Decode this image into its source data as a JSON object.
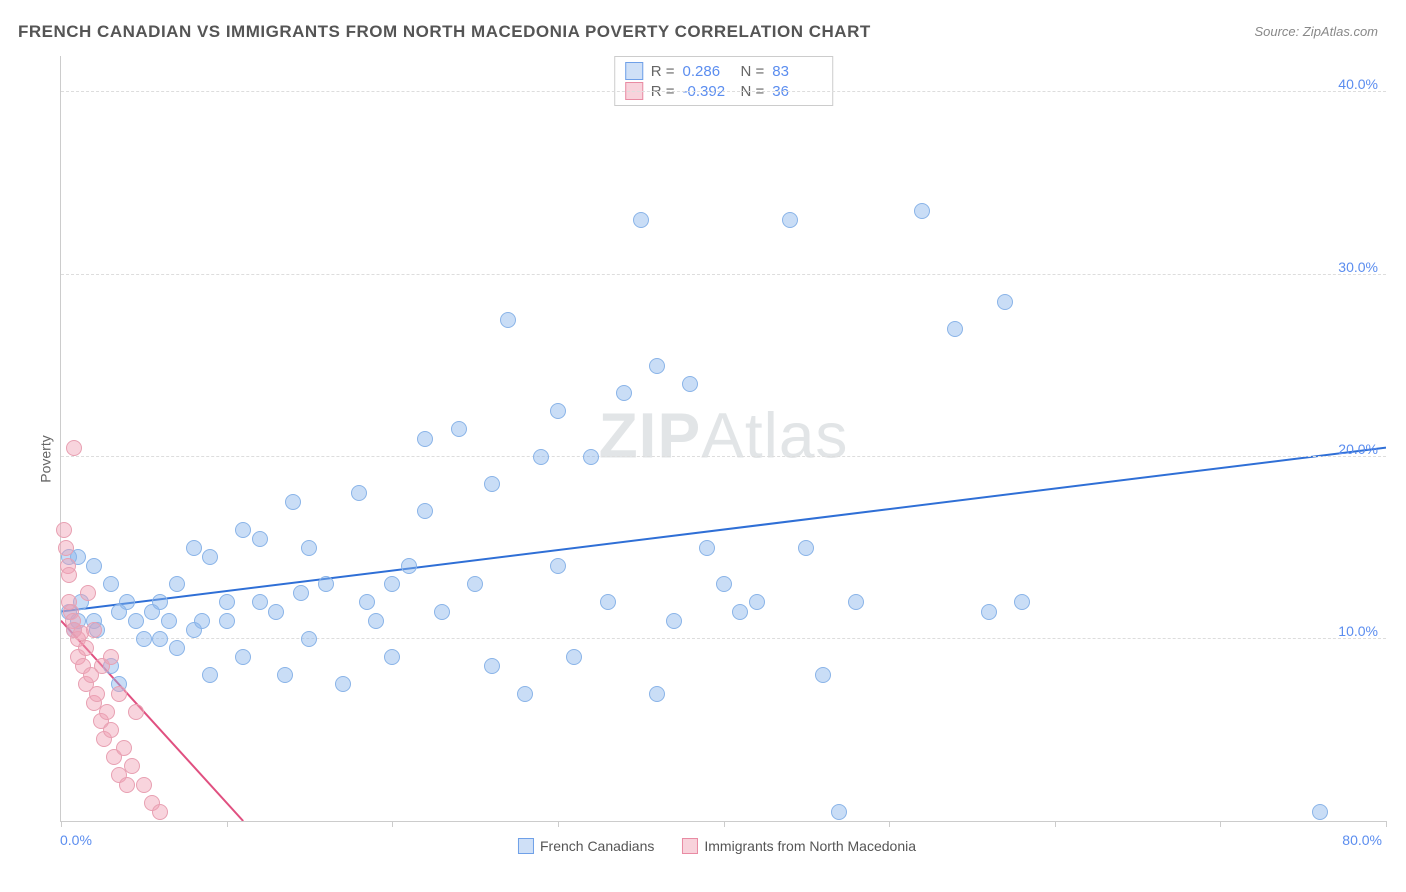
{
  "title": "FRENCH CANADIAN VS IMMIGRANTS FROM NORTH MACEDONIA POVERTY CORRELATION CHART",
  "source": "Source: ZipAtlas.com",
  "ylabel": "Poverty",
  "watermark": "ZIPAtlas",
  "chart": {
    "type": "scatter",
    "xlim": [
      0,
      80
    ],
    "ylim": [
      0,
      42
    ],
    "x_axis": {
      "min_label": "0.0%",
      "max_label": "80.0%",
      "label_color": "#5b8def",
      "tick_positions": [
        0,
        10,
        20,
        30,
        40,
        50,
        60,
        70,
        80
      ]
    },
    "y_axis": {
      "gridlines": [
        10,
        20,
        30,
        40
      ],
      "labels": {
        "10": "10.0%",
        "20": "20.0%",
        "30": "30.0%",
        "40": "40.0%"
      },
      "label_color": "#5b8def",
      "grid_color": "#dddddd"
    },
    "background_color": "#ffffff",
    "stats": [
      {
        "swatch_fill": "#cfe0f7",
        "swatch_border": "#6fa0e8",
        "r_label": "R =",
        "r": "0.286",
        "n_label": "N =",
        "n": "83"
      },
      {
        "swatch_fill": "#f8d2db",
        "swatch_border": "#e98ba3",
        "r_label": "R =",
        "r": "-0.392",
        "n_label": "N =",
        "n": "36"
      }
    ],
    "legend": [
      {
        "swatch_fill": "#cfe0f7",
        "swatch_border": "#6fa0e8",
        "label": "French Canadians"
      },
      {
        "swatch_fill": "#f8d2db",
        "swatch_border": "#e98ba3",
        "label": "Immigrants from North Macedonia"
      }
    ],
    "series": [
      {
        "name": "French Canadians",
        "point_fill": "rgba(135,180,235,0.45)",
        "point_stroke": "#8ab4e8",
        "point_radius": 8,
        "trend": {
          "x1": 0,
          "y1": 11.5,
          "x2": 80,
          "y2": 20.5,
          "color": "#2f6fd6",
          "width": 2
        },
        "points": [
          [
            0.5,
            14.5
          ],
          [
            1,
            11
          ],
          [
            1.2,
            12
          ],
          [
            2,
            11
          ],
          [
            2,
            14
          ],
          [
            2.2,
            10.5
          ],
          [
            3,
            13
          ],
          [
            3,
            8.5
          ],
          [
            3.5,
            11.5
          ],
          [
            3.5,
            7.5
          ],
          [
            4,
            12
          ],
          [
            4.5,
            11
          ],
          [
            5,
            10
          ],
          [
            5.5,
            11.5
          ],
          [
            6,
            10
          ],
          [
            6,
            12
          ],
          [
            6.5,
            11
          ],
          [
            7,
            9.5
          ],
          [
            7,
            13
          ],
          [
            8,
            10.5
          ],
          [
            8,
            15
          ],
          [
            8.5,
            11
          ],
          [
            9,
            14.5
          ],
          [
            9,
            8
          ],
          [
            10,
            12
          ],
          [
            10,
            11
          ],
          [
            11,
            16
          ],
          [
            11,
            9
          ],
          [
            12,
            15.5
          ],
          [
            12,
            12
          ],
          [
            13,
            11.5
          ],
          [
            13.5,
            8
          ],
          [
            14,
            17.5
          ],
          [
            14.5,
            12.5
          ],
          [
            15,
            15
          ],
          [
            15,
            10
          ],
          [
            16,
            13
          ],
          [
            17,
            7.5
          ],
          [
            18,
            18
          ],
          [
            18.5,
            12
          ],
          [
            19,
            11
          ],
          [
            20,
            13
          ],
          [
            20,
            9
          ],
          [
            21,
            14
          ],
          [
            22,
            21
          ],
          [
            22,
            17
          ],
          [
            23,
            11.5
          ],
          [
            24,
            21.5
          ],
          [
            25,
            13
          ],
          [
            26,
            18.5
          ],
          [
            26,
            8.5
          ],
          [
            27,
            27.5
          ],
          [
            28,
            7
          ],
          [
            29,
            20
          ],
          [
            30,
            22.5
          ],
          [
            30,
            14
          ],
          [
            31,
            9
          ],
          [
            32,
            20
          ],
          [
            33,
            12
          ],
          [
            34,
            23.5
          ],
          [
            35,
            33
          ],
          [
            36,
            25
          ],
          [
            36,
            7
          ],
          [
            37,
            11
          ],
          [
            38,
            24
          ],
          [
            39,
            15
          ],
          [
            40,
            13
          ],
          [
            41,
            11.5
          ],
          [
            42,
            12
          ],
          [
            44,
            33
          ],
          [
            45,
            15
          ],
          [
            46,
            8
          ],
          [
            48,
            12
          ],
          [
            52,
            33.5
          ],
          [
            54,
            27
          ],
          [
            56,
            11.5
          ],
          [
            57,
            28.5
          ],
          [
            58,
            12
          ],
          [
            47,
            0.5
          ],
          [
            76,
            0.5
          ],
          [
            1,
            14.5
          ],
          [
            0.5,
            11.5
          ],
          [
            0.8,
            10.5
          ]
        ]
      },
      {
        "name": "Immigrants from North Macedonia",
        "point_fill": "rgba(240,160,180,0.45)",
        "point_stroke": "#e8a0b2",
        "point_radius": 8,
        "trend": {
          "x1": 0,
          "y1": 11,
          "x2": 11,
          "y2": 0,
          "color": "#e05080",
          "width": 2
        },
        "points": [
          [
            0.2,
            16
          ],
          [
            0.3,
            15
          ],
          [
            0.4,
            14
          ],
          [
            0.5,
            13.5
          ],
          [
            0.5,
            12
          ],
          [
            0.6,
            11.5
          ],
          [
            0.7,
            11
          ],
          [
            0.8,
            10.5
          ],
          [
            0.8,
            20.5
          ],
          [
            1,
            10
          ],
          [
            1,
            9
          ],
          [
            1.2,
            10.3
          ],
          [
            1.3,
            8.5
          ],
          [
            1.5,
            9.5
          ],
          [
            1.5,
            7.5
          ],
          [
            1.6,
            12.5
          ],
          [
            1.8,
            8
          ],
          [
            2,
            10.5
          ],
          [
            2,
            6.5
          ],
          [
            2.2,
            7
          ],
          [
            2.4,
            5.5
          ],
          [
            2.5,
            8.5
          ],
          [
            2.6,
            4.5
          ],
          [
            2.8,
            6
          ],
          [
            3,
            5
          ],
          [
            3,
            9
          ],
          [
            3.2,
            3.5
          ],
          [
            3.5,
            7
          ],
          [
            3.5,
            2.5
          ],
          [
            3.8,
            4
          ],
          [
            4,
            2
          ],
          [
            4.3,
            3
          ],
          [
            4.5,
            6
          ],
          [
            5,
            2
          ],
          [
            5.5,
            1
          ],
          [
            6,
            0.5
          ]
        ]
      }
    ]
  }
}
